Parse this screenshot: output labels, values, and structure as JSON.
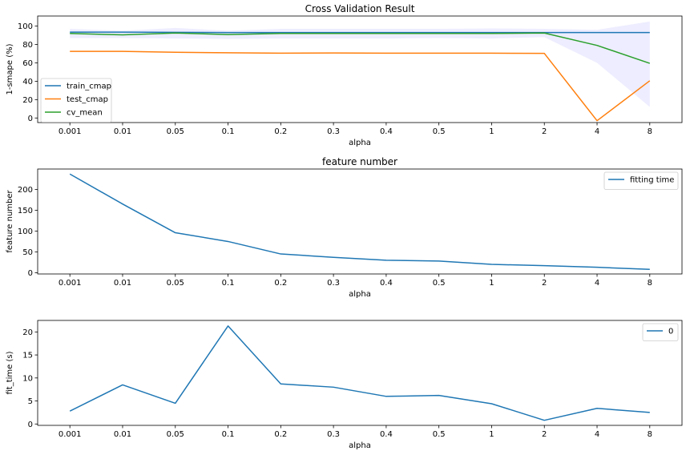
{
  "chart_data": [
    {
      "type": "line",
      "title": "Cross Validation Result",
      "xlabel": "alpha",
      "ylabel": "1-smape (%)",
      "categories": [
        "0.001",
        "0.01",
        "0.05",
        "0.1",
        "0.2",
        "0.3",
        "0.4",
        "0.5",
        "1",
        "2",
        "4",
        "8"
      ],
      "ylim": [
        -5,
        111
      ],
      "yticks": [
        0,
        20,
        40,
        60,
        80,
        100
      ],
      "legend_position": "lower-left",
      "series": [
        {
          "name": "train_cmap",
          "color": "#1f77b4",
          "values": [
            93.5,
            93.5,
            93.2,
            93.0,
            93.0,
            93.0,
            93.0,
            93.0,
            93.0,
            93.0,
            93.0,
            93.0
          ]
        },
        {
          "name": "test_cmap",
          "color": "#ff7f0e",
          "values": [
            72.5,
            72.5,
            71.5,
            71.0,
            70.5,
            70.8,
            70.5,
            70.5,
            70.5,
            70.3,
            -3.0,
            40.5
          ]
        },
        {
          "name": "cv_mean",
          "color": "#2ca02c",
          "values": [
            92.0,
            90.5,
            92.5,
            90.8,
            92.0,
            92.0,
            92.0,
            92.0,
            92.0,
            92.5,
            79.0,
            59.5
          ]
        }
      ],
      "band": {
        "of": "cv_mean",
        "color": "#0000ff",
        "opacity": 0.07,
        "lower": [
          87.0,
          87.0,
          86.5,
          86.0,
          86.5,
          86.5,
          86.5,
          87.0,
          86.5,
          88.0,
          60.0,
          12.0
        ],
        "upper": [
          97.0,
          95.0,
          98.0,
          95.0,
          97.0,
          97.0,
          97.0,
          97.0,
          97.5,
          97.0,
          96.0,
          105.0
        ]
      },
      "grid": false
    },
    {
      "type": "line",
      "title": "feature number",
      "xlabel": "alpha",
      "ylabel": "feature number",
      "categories": [
        "0.001",
        "0.01",
        "0.05",
        "0.1",
        "0.2",
        "0.3",
        "0.4",
        "0.5",
        "1",
        "2",
        "4",
        "8"
      ],
      "ylim": [
        -3,
        249
      ],
      "yticks": [
        0,
        50,
        100,
        150,
        200
      ],
      "legend_position": "top-right",
      "series": [
        {
          "name": "fitting time",
          "color": "#1f77b4",
          "values": [
            237,
            165,
            96,
            75,
            45,
            37,
            30,
            28,
            20,
            17,
            13,
            8
          ]
        }
      ],
      "grid": false
    },
    {
      "type": "line",
      "title": "",
      "xlabel": "alpha",
      "ylabel": "fit_time (s)",
      "categories": [
        "0.001",
        "0.01",
        "0.05",
        "0.1",
        "0.2",
        "0.3",
        "0.4",
        "0.5",
        "1",
        "2",
        "4",
        "8"
      ],
      "ylim": [
        -0.3,
        22.5
      ],
      "yticks": [
        0,
        5,
        10,
        15,
        20
      ],
      "legend_position": "top-right",
      "series": [
        {
          "name": "0",
          "color": "#1f77b4",
          "values": [
            2.8,
            8.5,
            4.5,
            21.3,
            8.7,
            8.0,
            6.0,
            6.2,
            4.4,
            0.8,
            3.4,
            2.5
          ]
        }
      ],
      "grid": false
    }
  ]
}
